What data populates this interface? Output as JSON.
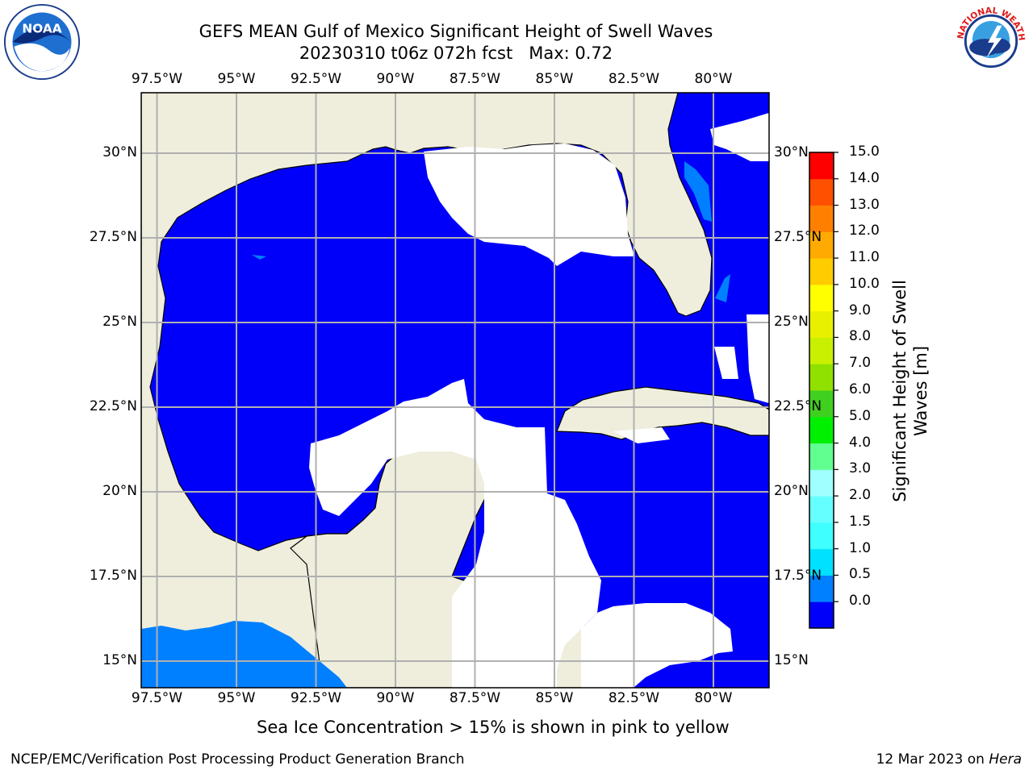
{
  "title": "GEFS MEAN Gulf of Mexico Significant Height of Swell Waves",
  "subtitle": "20230310 t06z 072h fcst   Max: 0.72",
  "logos": {
    "left": "NOAA",
    "right": "NATIONAL WEATHER SERVICE"
  },
  "map": {
    "lon_labels": [
      "97.5°W",
      "95°W",
      "92.5°W",
      "90°W",
      "87.5°W",
      "85°W",
      "82.5°W",
      "80°W"
    ],
    "lat_labels": [
      "30°N",
      "27.5°N",
      "25°N",
      "22.5°N",
      "20°N",
      "17.5°N",
      "15°N"
    ],
    "lon_range": [
      -98,
      -78.3
    ],
    "lat_range": [
      14,
      31.7
    ],
    "colors": {
      "land": "#efeedd",
      "ocean_low": "#0000fa",
      "ocean_mid": "#0080ff",
      "no_data": "#ffffff",
      "grid": "#b0b0b0"
    }
  },
  "colorbar": {
    "label": "Significant Height of Swell Waves [m]",
    "label_line1": "Significant Height of Swell",
    "label_line2": "Waves [m]",
    "ticks": [
      "15.0",
      "14.0",
      "13.0",
      "12.0",
      "11.0",
      "10.0",
      "9.0",
      "8.0",
      "7.0",
      "6.0",
      "5.0",
      "4.0",
      "3.0",
      "2.0",
      "1.5",
      "1.0",
      "0.5",
      "0.0"
    ],
    "colors": [
      "#0000fa",
      "#0080ff",
      "#00e0ff",
      "#40ffff",
      "#66ffff",
      "#a0ffff",
      "#60ff90",
      "#00f000",
      "#40d020",
      "#90e000",
      "#c8f000",
      "#e8f000",
      "#ffff00",
      "#ffcc00",
      "#ffaa00",
      "#ff8000",
      "#ff5000",
      "#ff0000"
    ]
  },
  "footnote": "Sea Ice Concentration > 15% is shown in pink to yellow",
  "credit": "NCEP/EMC/Verification Post Processing Product Generation Branch",
  "date_text": "12 Mar 2023 on ",
  "host": "Hera"
}
